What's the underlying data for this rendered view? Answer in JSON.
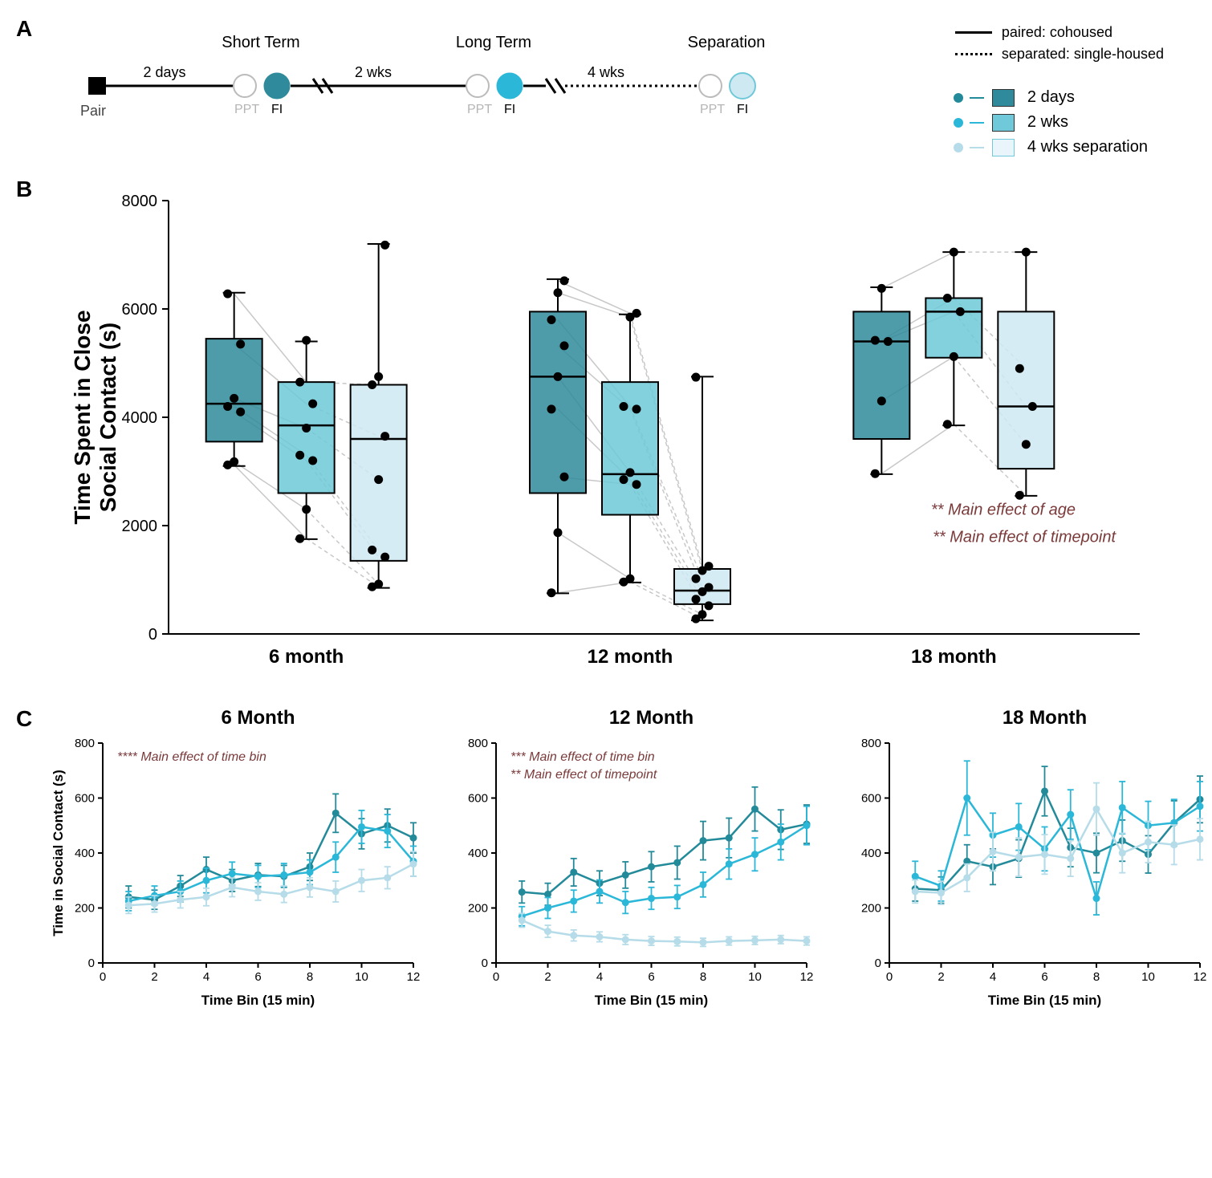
{
  "colors": {
    "days2": "#2f8b9b",
    "wks2": "#6fc9d8",
    "sep4": "#cfe9f2",
    "sep4_line": "#b5dce8",
    "days2_dot": "#238a9a",
    "wks2_dot": "#2ab7d8",
    "sep4_dot": "#b5dce8",
    "box_border": "#2a2a2a",
    "grid": "#e5e5e5",
    "point": "#000000",
    "connector_solid": "#c8c8c8",
    "connector_dash": "#c8c8c8",
    "effect_text": "#7b3a3a",
    "ppt_gray": "#b5b5b5"
  },
  "panelA": {
    "title_short": "Short Term",
    "title_long": "Long Term",
    "title_sep": "Separation",
    "dur1": "2 days",
    "dur2": "2 wks",
    "dur3": "4 wks",
    "pair": "Pair",
    "ppt": "PPT",
    "fi": "FI",
    "legend_paired": "paired: cohoused",
    "legend_sep": "separated: single-housed",
    "legend_2days": "2 days",
    "legend_2wks": "2 wks",
    "legend_4wks": "4 wks separation"
  },
  "panelB": {
    "ylabel": "Time Spent in Close\nSocial Contact (s)",
    "ylabel_line1": "Time Spent in Close",
    "ylabel_line2": "Social Contact (s)",
    "ylim": [
      0,
      8000
    ],
    "yticks": [
      0,
      2000,
      4000,
      6000,
      8000
    ],
    "groups": [
      "6 month",
      "12 month",
      "18 month"
    ],
    "note1": "** Main effect of age",
    "note2": "** Main effect of timepoint",
    "boxes": {
      "6 month": {
        "2 days": {
          "min": 3100,
          "q1": 3550,
          "med": 4250,
          "q3": 5450,
          "max": 6300
        },
        "2 wks": {
          "min": 1750,
          "q1": 2600,
          "med": 3850,
          "q3": 4650,
          "max": 5400
        },
        "4 wks": {
          "min": 850,
          "q1": 1350,
          "med": 3600,
          "q3": 4600,
          "max": 7200
        }
      },
      "12 month": {
        "2 days": {
          "min": 750,
          "q1": 2600,
          "med": 4750,
          "q3": 5950,
          "max": 6550
        },
        "2 wks": {
          "min": 950,
          "q1": 2200,
          "med": 2950,
          "q3": 4650,
          "max": 5900
        },
        "4 wks": {
          "min": 250,
          "q1": 550,
          "med": 800,
          "q3": 1200,
          "max": 4750
        }
      },
      "18 month": {
        "2 days": {
          "min": 2950,
          "q1": 3600,
          "med": 5400,
          "q3": 5950,
          "max": 6400
        },
        "2 wks": {
          "min": 3850,
          "q1": 5100,
          "med": 5950,
          "q3": 6200,
          "max": 7050
        },
        "4 wks": {
          "min": 2550,
          "q1": 3050,
          "med": 4200,
          "q3": 5950,
          "max": 7050
        }
      }
    },
    "points": {
      "6 month": {
        "2 days": [
          3120,
          3180,
          4100,
          4200,
          4350,
          5350,
          6280
        ],
        "2 wks": [
          1760,
          2300,
          3200,
          3300,
          3800,
          4250,
          4650,
          5420
        ],
        "4 wks": [
          870,
          920,
          1420,
          1550,
          2850,
          3650,
          4600,
          4750,
          7180
        ]
      },
      "12 month": {
        "2 days": [
          760,
          1870,
          2900,
          4150,
          4750,
          5320,
          5800,
          6300,
          6520
        ],
        "2 wks": [
          960,
          1020,
          2760,
          2850,
          2980,
          4150,
          4200,
          5850,
          5920
        ],
        "4 wks": [
          280,
          360,
          520,
          640,
          780,
          860,
          1020,
          1170,
          1250,
          4740
        ]
      },
      "18 month": {
        "2 days": [
          2960,
          4300,
          5400,
          5420,
          6380
        ],
        "2 wks": [
          3870,
          5120,
          5950,
          6200,
          7050
        ],
        "4 wks": [
          2560,
          3500,
          4200,
          4900,
          7050
        ]
      }
    }
  },
  "panelC": {
    "ylabel": "Time in Social Contact (s)",
    "xlabel": "Time Bin (15 min)",
    "ylim": [
      0,
      800
    ],
    "yticks": [
      0,
      200,
      400,
      600,
      800
    ],
    "xlim": [
      0,
      12
    ],
    "xticks": [
      0,
      2,
      4,
      6,
      8,
      10,
      12
    ],
    "subplots": [
      {
        "title": "6 Month",
        "notes": [
          "**** Main effect of time bin"
        ],
        "series": {
          "2 days": [
            [
              1,
              240,
              40
            ],
            [
              2,
              230,
              35
            ],
            [
              3,
              280,
              38
            ],
            [
              4,
              340,
              45
            ],
            [
              5,
              300,
              40
            ],
            [
              6,
              320,
              42
            ],
            [
              7,
              315,
              40
            ],
            [
              8,
              350,
              50
            ],
            [
              9,
              545,
              70
            ],
            [
              10,
              470,
              55
            ],
            [
              11,
              500,
              60
            ],
            [
              12,
              455,
              55
            ]
          ],
          "2 wks": [
            [
              1,
              225,
              35
            ],
            [
              2,
              245,
              35
            ],
            [
              3,
              260,
              38
            ],
            [
              4,
              300,
              45
            ],
            [
              5,
              325,
              42
            ],
            [
              6,
              315,
              40
            ],
            [
              7,
              320,
              42
            ],
            [
              8,
              330,
              45
            ],
            [
              9,
              385,
              55
            ],
            [
              10,
              495,
              60
            ],
            [
              11,
              480,
              60
            ],
            [
              12,
              370,
              55
            ]
          ],
          "4 wks": [
            [
              1,
              210,
              30
            ],
            [
              2,
              215,
              30
            ],
            [
              3,
              230,
              30
            ],
            [
              4,
              240,
              32
            ],
            [
              5,
              275,
              34
            ],
            [
              6,
              260,
              32
            ],
            [
              7,
              250,
              30
            ],
            [
              8,
              275,
              35
            ],
            [
              9,
              260,
              38
            ],
            [
              10,
              300,
              40
            ],
            [
              11,
              310,
              40
            ],
            [
              12,
              360,
              45
            ]
          ]
        }
      },
      {
        "title": "12 Month",
        "notes": [
          "*** Main effect of time bin",
          "** Main effect of timepoint"
        ],
        "series": {
          "2 days": [
            [
              1,
              258,
              40
            ],
            [
              2,
              250,
              40
            ],
            [
              3,
              330,
              50
            ],
            [
              4,
              290,
              45
            ],
            [
              5,
              320,
              48
            ],
            [
              6,
              350,
              55
            ],
            [
              7,
              365,
              60
            ],
            [
              8,
              445,
              70
            ],
            [
              9,
              455,
              72
            ],
            [
              10,
              560,
              80
            ],
            [
              11,
              485,
              72
            ],
            [
              12,
              505,
              70
            ]
          ],
          "2 wks": [
            [
              1,
              170,
              35
            ],
            [
              2,
              200,
              38
            ],
            [
              3,
              225,
              40
            ],
            [
              4,
              260,
              42
            ],
            [
              5,
              220,
              40
            ],
            [
              6,
              235,
              40
            ],
            [
              7,
              240,
              42
            ],
            [
              8,
              285,
              45
            ],
            [
              9,
              360,
              55
            ],
            [
              10,
              395,
              60
            ],
            [
              11,
              440,
              65
            ],
            [
              12,
              500,
              70
            ]
          ],
          "4 wks": [
            [
              1,
              155,
              25
            ],
            [
              2,
              115,
              22
            ],
            [
              3,
              100,
              20
            ],
            [
              4,
              95,
              18
            ],
            [
              5,
              85,
              18
            ],
            [
              6,
              80,
              16
            ],
            [
              7,
              78,
              16
            ],
            [
              8,
              75,
              15
            ],
            [
              9,
              80,
              15
            ],
            [
              10,
              82,
              15
            ],
            [
              11,
              85,
              15
            ],
            [
              12,
              80,
              15
            ]
          ]
        }
      },
      {
        "title": "18 Month",
        "notes": [],
        "series": {
          "2 days": [
            [
              1,
              270,
              45
            ],
            [
              2,
              265,
              48
            ],
            [
              3,
              370,
              60
            ],
            [
              4,
              350,
              65
            ],
            [
              5,
              380,
              68
            ],
            [
              6,
              625,
              90
            ],
            [
              7,
              420,
              70
            ],
            [
              8,
              400,
              72
            ],
            [
              9,
              445,
              75
            ],
            [
              10,
              395,
              68
            ],
            [
              11,
              510,
              80
            ],
            [
              12,
              595,
              85
            ]
          ],
          "2 wks": [
            [
              1,
              315,
              55
            ],
            [
              2,
              280,
              55
            ],
            [
              3,
              600,
              135
            ],
            [
              4,
              465,
              80
            ],
            [
              5,
              495,
              85
            ],
            [
              6,
              415,
              80
            ],
            [
              7,
              540,
              90
            ],
            [
              8,
              235,
              60
            ],
            [
              9,
              565,
              95
            ],
            [
              10,
              500,
              88
            ],
            [
              11,
              510,
              85
            ],
            [
              12,
              570,
              90
            ]
          ],
          "4 wks": [
            [
              1,
              260,
              42
            ],
            [
              2,
              255,
              42
            ],
            [
              3,
              310,
              50
            ],
            [
              4,
              405,
              70
            ],
            [
              5,
              385,
              70
            ],
            [
              6,
              395,
              72
            ],
            [
              7,
              380,
              65
            ],
            [
              8,
              560,
              95
            ],
            [
              9,
              400,
              72
            ],
            [
              10,
              440,
              75
            ],
            [
              11,
              430,
              72
            ],
            [
              12,
              450,
              75
            ]
          ]
        }
      }
    ]
  }
}
